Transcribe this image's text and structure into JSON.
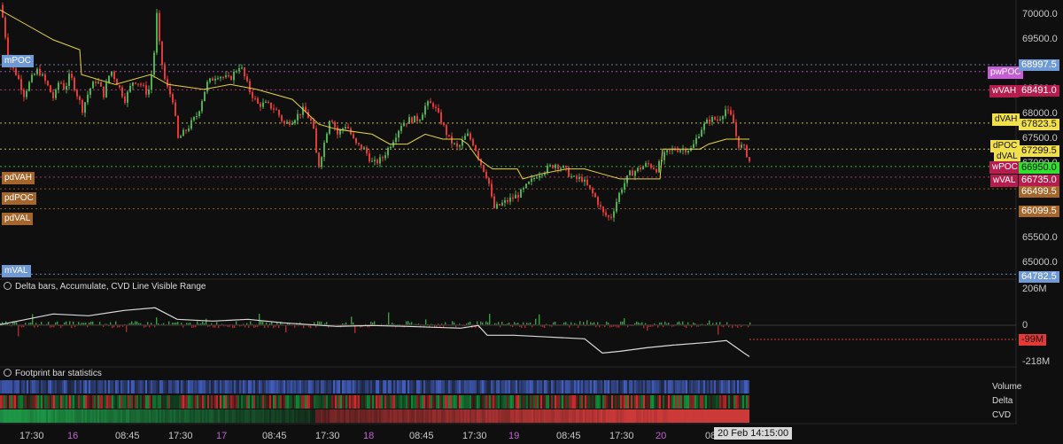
{
  "colors": {
    "background": "#0f0f0f",
    "up": "#4caf50",
    "down": "#e53935",
    "vwap": "#e8d43a",
    "cvd": "#d9d9d9",
    "blue_tag": "#6f9ad6",
    "pink_tag": "#d63a8a",
    "purple_tag": "#c65fd6",
    "yellow_tag": "#f2e04a",
    "green_tag": "#2fe02f",
    "brown_tag": "#a5652b",
    "red_tag": "#e83b3b"
  },
  "price_axis": {
    "ticks": [
      "70000.0",
      "69500.0",
      "69000.0",
      "68500.0",
      "68000.0",
      "67500.0",
      "67000.0",
      "66500.0",
      "66000.0",
      "65500.0",
      "65000.0"
    ],
    "range": [
      64700,
      70300
    ]
  },
  "levels": [
    {
      "name": "mPOC",
      "price": 68997.5,
      "label": "68997.5",
      "style": "blue"
    },
    {
      "name": "pwPOC",
      "price": 68860,
      "label": "pwPOC",
      "style": "purple"
    },
    {
      "name": "wVAH",
      "price": 68491.0,
      "label": "68491.0",
      "style": "pink"
    },
    {
      "name": "dVAH",
      "price": 67823.5,
      "label": "67823.5",
      "style": "yellow"
    },
    {
      "name": "dPOC",
      "price": 67299.5,
      "label": "67299.5",
      "style": "yellow"
    },
    {
      "name": "wPOC",
      "price": 66950.0,
      "label": "66950.0",
      "style": "green"
    },
    {
      "name": "wVAL",
      "price": 66735.0,
      "label": "66735.0",
      "style": "pink"
    },
    {
      "name": "pdPOC",
      "price": 66499.5,
      "label": "66499.5",
      "style": "brown"
    },
    {
      "name": "pdVAL",
      "price": 66099.5,
      "label": "66099.5",
      "style": "brown"
    },
    {
      "name": "mVAL",
      "price": 64782.5,
      "label": "64782.5",
      "style": "blue"
    }
  ],
  "left_tags": {
    "mPOC": "mPOC",
    "pdVAH": "pdVAH",
    "pdPOC": "pdPOC",
    "pdVAL": "pdVAL",
    "mVAL": "mVAL"
  },
  "right_tags": {
    "pwPOC": "pwPOC",
    "wVAH": "wVAH",
    "dVAH": "dVAH",
    "dPOC": "dPOC",
    "dVAL": "dVAL",
    "wPOC": "wPOC",
    "wVAL": "wVAL"
  },
  "delta_pane": {
    "title": "Delta bars, Accumulate, CVD Line Visible Range",
    "ticks": [
      "206M",
      "0",
      "-218M"
    ],
    "current_value": "-99M"
  },
  "footprint_pane": {
    "title": "Footprint bar statistics",
    "rows": [
      "Volume",
      "Delta",
      "CVD"
    ]
  },
  "time_axis": {
    "ticks": [
      {
        "label": "17:30",
        "day": false
      },
      {
        "label": "16",
        "day": true
      },
      {
        "label": "08:45",
        "day": false
      },
      {
        "label": "17:30",
        "day": false
      },
      {
        "label": "17",
        "day": true
      },
      {
        "label": "08:45",
        "day": false
      },
      {
        "label": "17:30",
        "day": false
      },
      {
        "label": "18",
        "day": true
      },
      {
        "label": "08:45",
        "day": false
      },
      {
        "label": "17:30",
        "day": false
      },
      {
        "label": "19",
        "day": true
      },
      {
        "label": "08:45",
        "day": false
      },
      {
        "label": "17:30",
        "day": false
      },
      {
        "label": "20",
        "day": true
      },
      {
        "label": "08:",
        "day": false
      }
    ],
    "crosshair_label": "20 Feb 14:15:00"
  },
  "chart_data": {
    "type": "candlestick",
    "price_path": [
      [
        0,
        70200
      ],
      [
        4,
        69700
      ],
      [
        10,
        69000
      ],
      [
        18,
        68800
      ],
      [
        26,
        68400
      ],
      [
        34,
        68700
      ],
      [
        42,
        68900
      ],
      [
        52,
        68600
      ],
      [
        60,
        68300
      ],
      [
        66,
        68700
      ],
      [
        72,
        68500
      ],
      [
        78,
        68800
      ],
      [
        86,
        68400
      ],
      [
        92,
        68100
      ],
      [
        100,
        68500
      ],
      [
        108,
        68700
      ],
      [
        116,
        68400
      ],
      [
        124,
        68900
      ],
      [
        132,
        68600
      ],
      [
        140,
        68300
      ],
      [
        150,
        68700
      ],
      [
        158,
        68600
      ],
      [
        166,
        68400
      ],
      [
        172,
        69000
      ],
      [
        176,
        70000
      ],
      [
        180,
        69200
      ],
      [
        186,
        68600
      ],
      [
        194,
        68300
      ],
      [
        200,
        67500
      ],
      [
        210,
        67700
      ],
      [
        222,
        68000
      ],
      [
        232,
        68600
      ],
      [
        244,
        68800
      ],
      [
        258,
        68700
      ],
      [
        270,
        69000
      ],
      [
        280,
        68500
      ],
      [
        290,
        68200
      ],
      [
        300,
        68200
      ],
      [
        310,
        68100
      ],
      [
        320,
        67800
      ],
      [
        330,
        67900
      ],
      [
        342,
        68100
      ],
      [
        352,
        67800
      ],
      [
        358,
        66900
      ],
      [
        366,
        67500
      ],
      [
        372,
        68000
      ],
      [
        380,
        67600
      ],
      [
        390,
        67800
      ],
      [
        400,
        67400
      ],
      [
        410,
        67300
      ],
      [
        420,
        67000
      ],
      [
        430,
        67100
      ],
      [
        440,
        67400
      ],
      [
        452,
        67800
      ],
      [
        462,
        67900
      ],
      [
        472,
        67900
      ],
      [
        480,
        68200
      ],
      [
        488,
        68200
      ],
      [
        496,
        67900
      ],
      [
        506,
        67500
      ],
      [
        516,
        67300
      ],
      [
        526,
        67600
      ],
      [
        534,
        67400
      ],
      [
        542,
        67000
      ],
      [
        550,
        66700
      ],
      [
        556,
        66100
      ],
      [
        566,
        66200
      ],
      [
        576,
        66300
      ],
      [
        586,
        66400
      ],
      [
        596,
        66600
      ],
      [
        606,
        66800
      ],
      [
        616,
        66900
      ],
      [
        626,
        67000
      ],
      [
        636,
        66900
      ],
      [
        646,
        66700
      ],
      [
        656,
        66700
      ],
      [
        664,
        66500
      ],
      [
        672,
        66300
      ],
      [
        680,
        66000
      ],
      [
        688,
        65900
      ],
      [
        694,
        66200
      ],
      [
        700,
        66500
      ],
      [
        710,
        66800
      ],
      [
        720,
        66900
      ],
      [
        730,
        67000
      ],
      [
        740,
        66900
      ],
      [
        750,
        67200
      ],
      [
        760,
        67300
      ],
      [
        770,
        67300
      ],
      [
        780,
        67300
      ],
      [
        790,
        67700
      ],
      [
        800,
        67900
      ],
      [
        810,
        67900
      ],
      [
        818,
        68100
      ],
      [
        826,
        67900
      ],
      [
        832,
        67400
      ],
      [
        840,
        67300
      ],
      [
        846,
        67000
      ]
    ],
    "vwap_path": [
      [
        0,
        70100
      ],
      [
        30,
        69800
      ],
      [
        60,
        69500
      ],
      [
        90,
        69300
      ],
      [
        92,
        68800
      ],
      [
        130,
        68600
      ],
      [
        170,
        68800
      ],
      [
        190,
        68600
      ],
      [
        230,
        68500
      ],
      [
        260,
        68600
      ],
      [
        290,
        68500
      ],
      [
        330,
        68300
      ],
      [
        360,
        67800
      ],
      [
        380,
        67700
      ],
      [
        420,
        67600
      ],
      [
        440,
        67400
      ],
      [
        460,
        67400
      ],
      [
        480,
        67600
      ],
      [
        500,
        67500
      ],
      [
        520,
        67500
      ],
      [
        528,
        67400
      ],
      [
        540,
        67100
      ],
      [
        556,
        66900
      ],
      [
        584,
        66900
      ],
      [
        590,
        66700
      ],
      [
        610,
        66800
      ],
      [
        640,
        66900
      ],
      [
        660,
        66900
      ],
      [
        680,
        66800
      ],
      [
        700,
        66700
      ],
      [
        745,
        66700
      ],
      [
        748,
        67300
      ],
      [
        790,
        67300
      ],
      [
        800,
        67400
      ],
      [
        820,
        67500
      ],
      [
        846,
        67500
      ]
    ],
    "cvd_path": [
      [
        0,
        0
      ],
      [
        20,
        20
      ],
      [
        60,
        60
      ],
      [
        100,
        50
      ],
      [
        140,
        80
      ],
      [
        175,
        95
      ],
      [
        200,
        30
      ],
      [
        240,
        20
      ],
      [
        280,
        30
      ],
      [
        320,
        10
      ],
      [
        350,
        0
      ],
      [
        380,
        -10
      ],
      [
        420,
        -5
      ],
      [
        460,
        -10
      ],
      [
        490,
        -15
      ],
      [
        520,
        -20
      ],
      [
        540,
        -5
      ],
      [
        550,
        -60
      ],
      [
        580,
        -60
      ],
      [
        620,
        -70
      ],
      [
        660,
        -80
      ],
      [
        680,
        -160
      ],
      [
        700,
        -150
      ],
      [
        730,
        -130
      ],
      [
        760,
        -115
      ],
      [
        800,
        -100
      ],
      [
        820,
        -90
      ],
      [
        840,
        -160
      ],
      [
        846,
        -180
      ]
    ],
    "delta_range": [
      -218,
      206
    ]
  }
}
